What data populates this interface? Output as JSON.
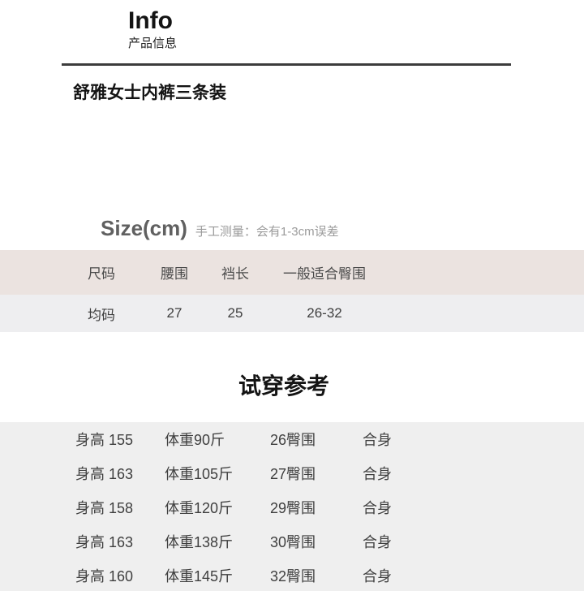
{
  "header": {
    "title_en": "Info",
    "title_zh": "产品信息"
  },
  "product": {
    "name": "舒雅女士内裤三条装"
  },
  "size_section": {
    "heading": "Size(cm)",
    "note": "手工测量：会有1-3cm误差",
    "table": {
      "headers": [
        "尺码",
        "腰围",
        "裆长",
        "一般适合臀围"
      ],
      "rows": [
        [
          "均码",
          "27",
          "25",
          "26-32"
        ]
      ]
    }
  },
  "fit_section": {
    "heading": "试穿参考",
    "rows": [
      [
        "身高 155",
        "体重90斤",
        "26臀围",
        "合身"
      ],
      [
        "身高 163",
        "体重105斤",
        "27臀围",
        "合身"
      ],
      [
        "身高 158",
        "体重120斤",
        "29臀围",
        "合身"
      ],
      [
        "身高 163",
        "体重138斤",
        "30臀围",
        "合身"
      ],
      [
        "身高 160",
        "体重145斤",
        "32臀围",
        "合身"
      ]
    ]
  },
  "colors": {
    "size_header_bg": "#ebe3e0",
    "size_row_bg": "#eeeef0",
    "fit_block_bg": "#efefef",
    "divider_color": "#3c3c3c",
    "text_gray": "#606060",
    "text_light": "#9b9b9b"
  }
}
